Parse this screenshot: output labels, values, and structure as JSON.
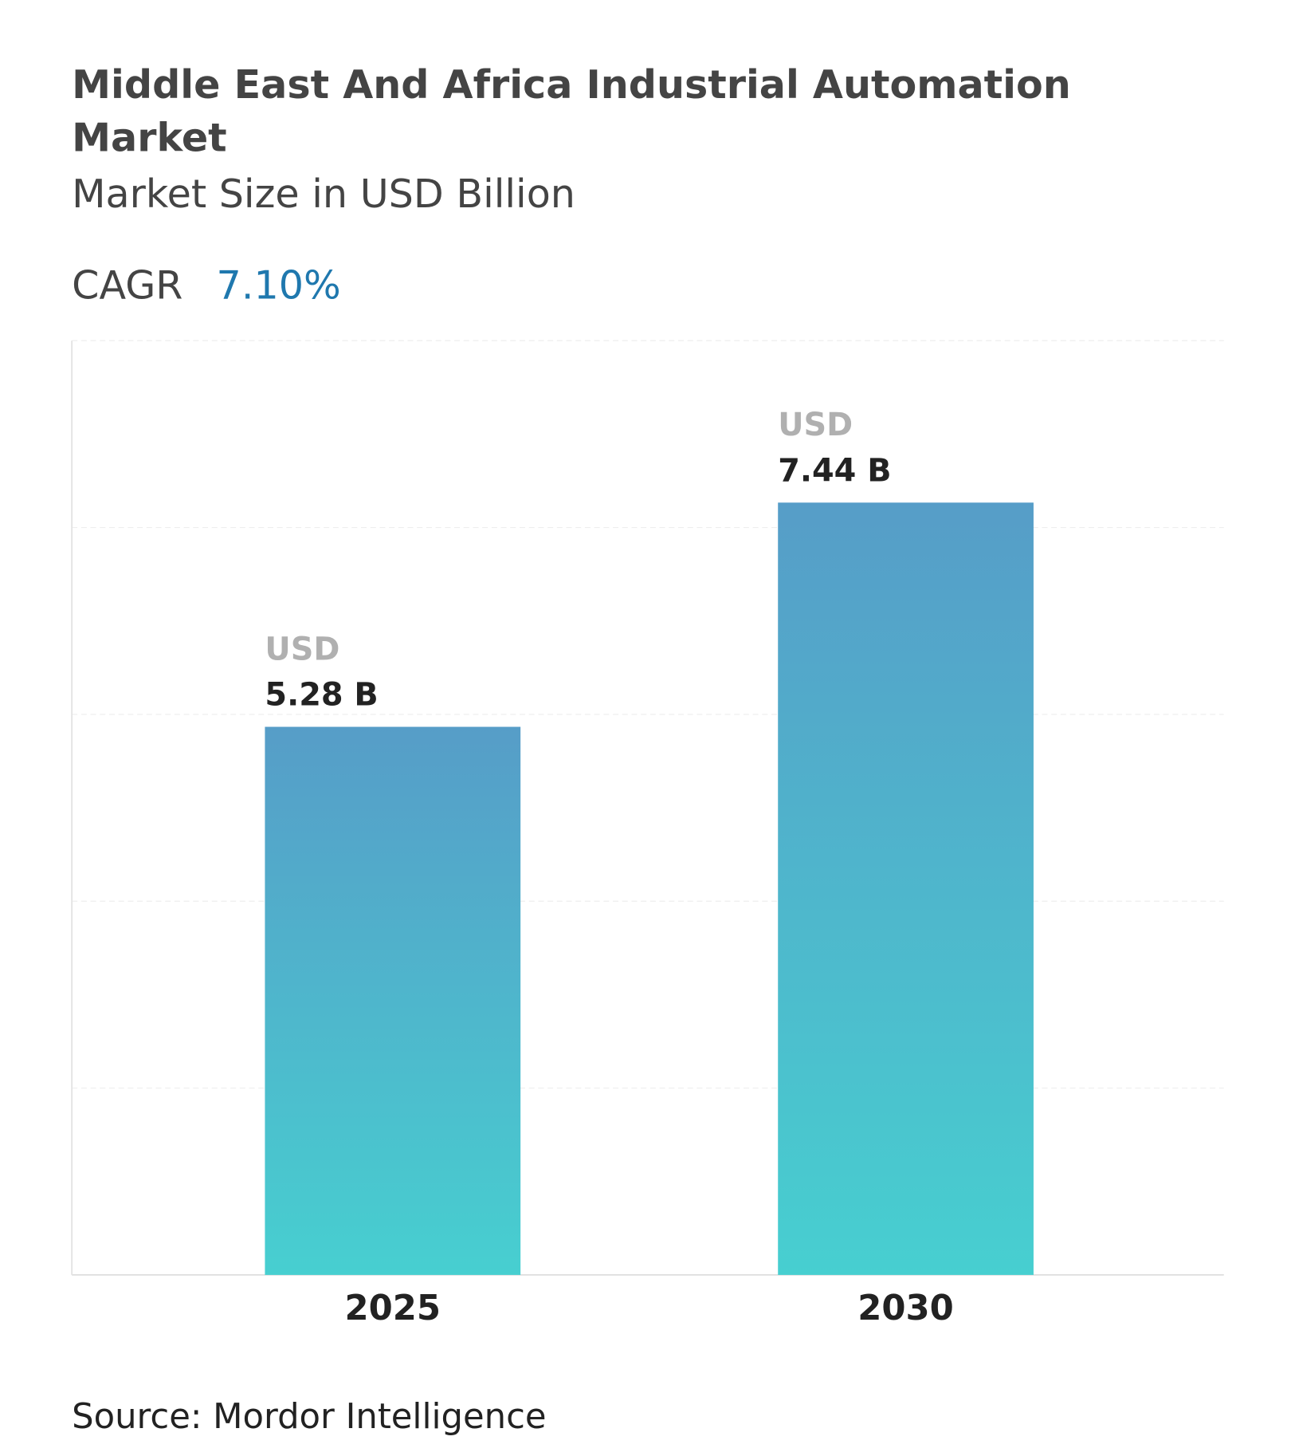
{
  "chart_data": {
    "type": "bar",
    "title": [
      "Middle East And Africa Industrial Automation",
      "Market"
    ],
    "subtitle": "Market Size in USD Billion",
    "cagr": {
      "label": "CAGR",
      "value": "7.10%"
    },
    "categories": [
      "2025",
      "2030"
    ],
    "values": [
      5.28,
      7.44
    ],
    "value_labels": [
      [
        "USD",
        "5.28 B"
      ],
      [
        "USD",
        "7.44 B"
      ]
    ],
    "colors": [
      "#569dc8",
      "#47cfd0"
    ],
    "ylim": [
      0,
      9
    ],
    "yticks": [
      0,
      1.8,
      3.6,
      5.4,
      7.2,
      9
    ],
    "grid": true,
    "source": "Source: Mordor Intelligence"
  }
}
